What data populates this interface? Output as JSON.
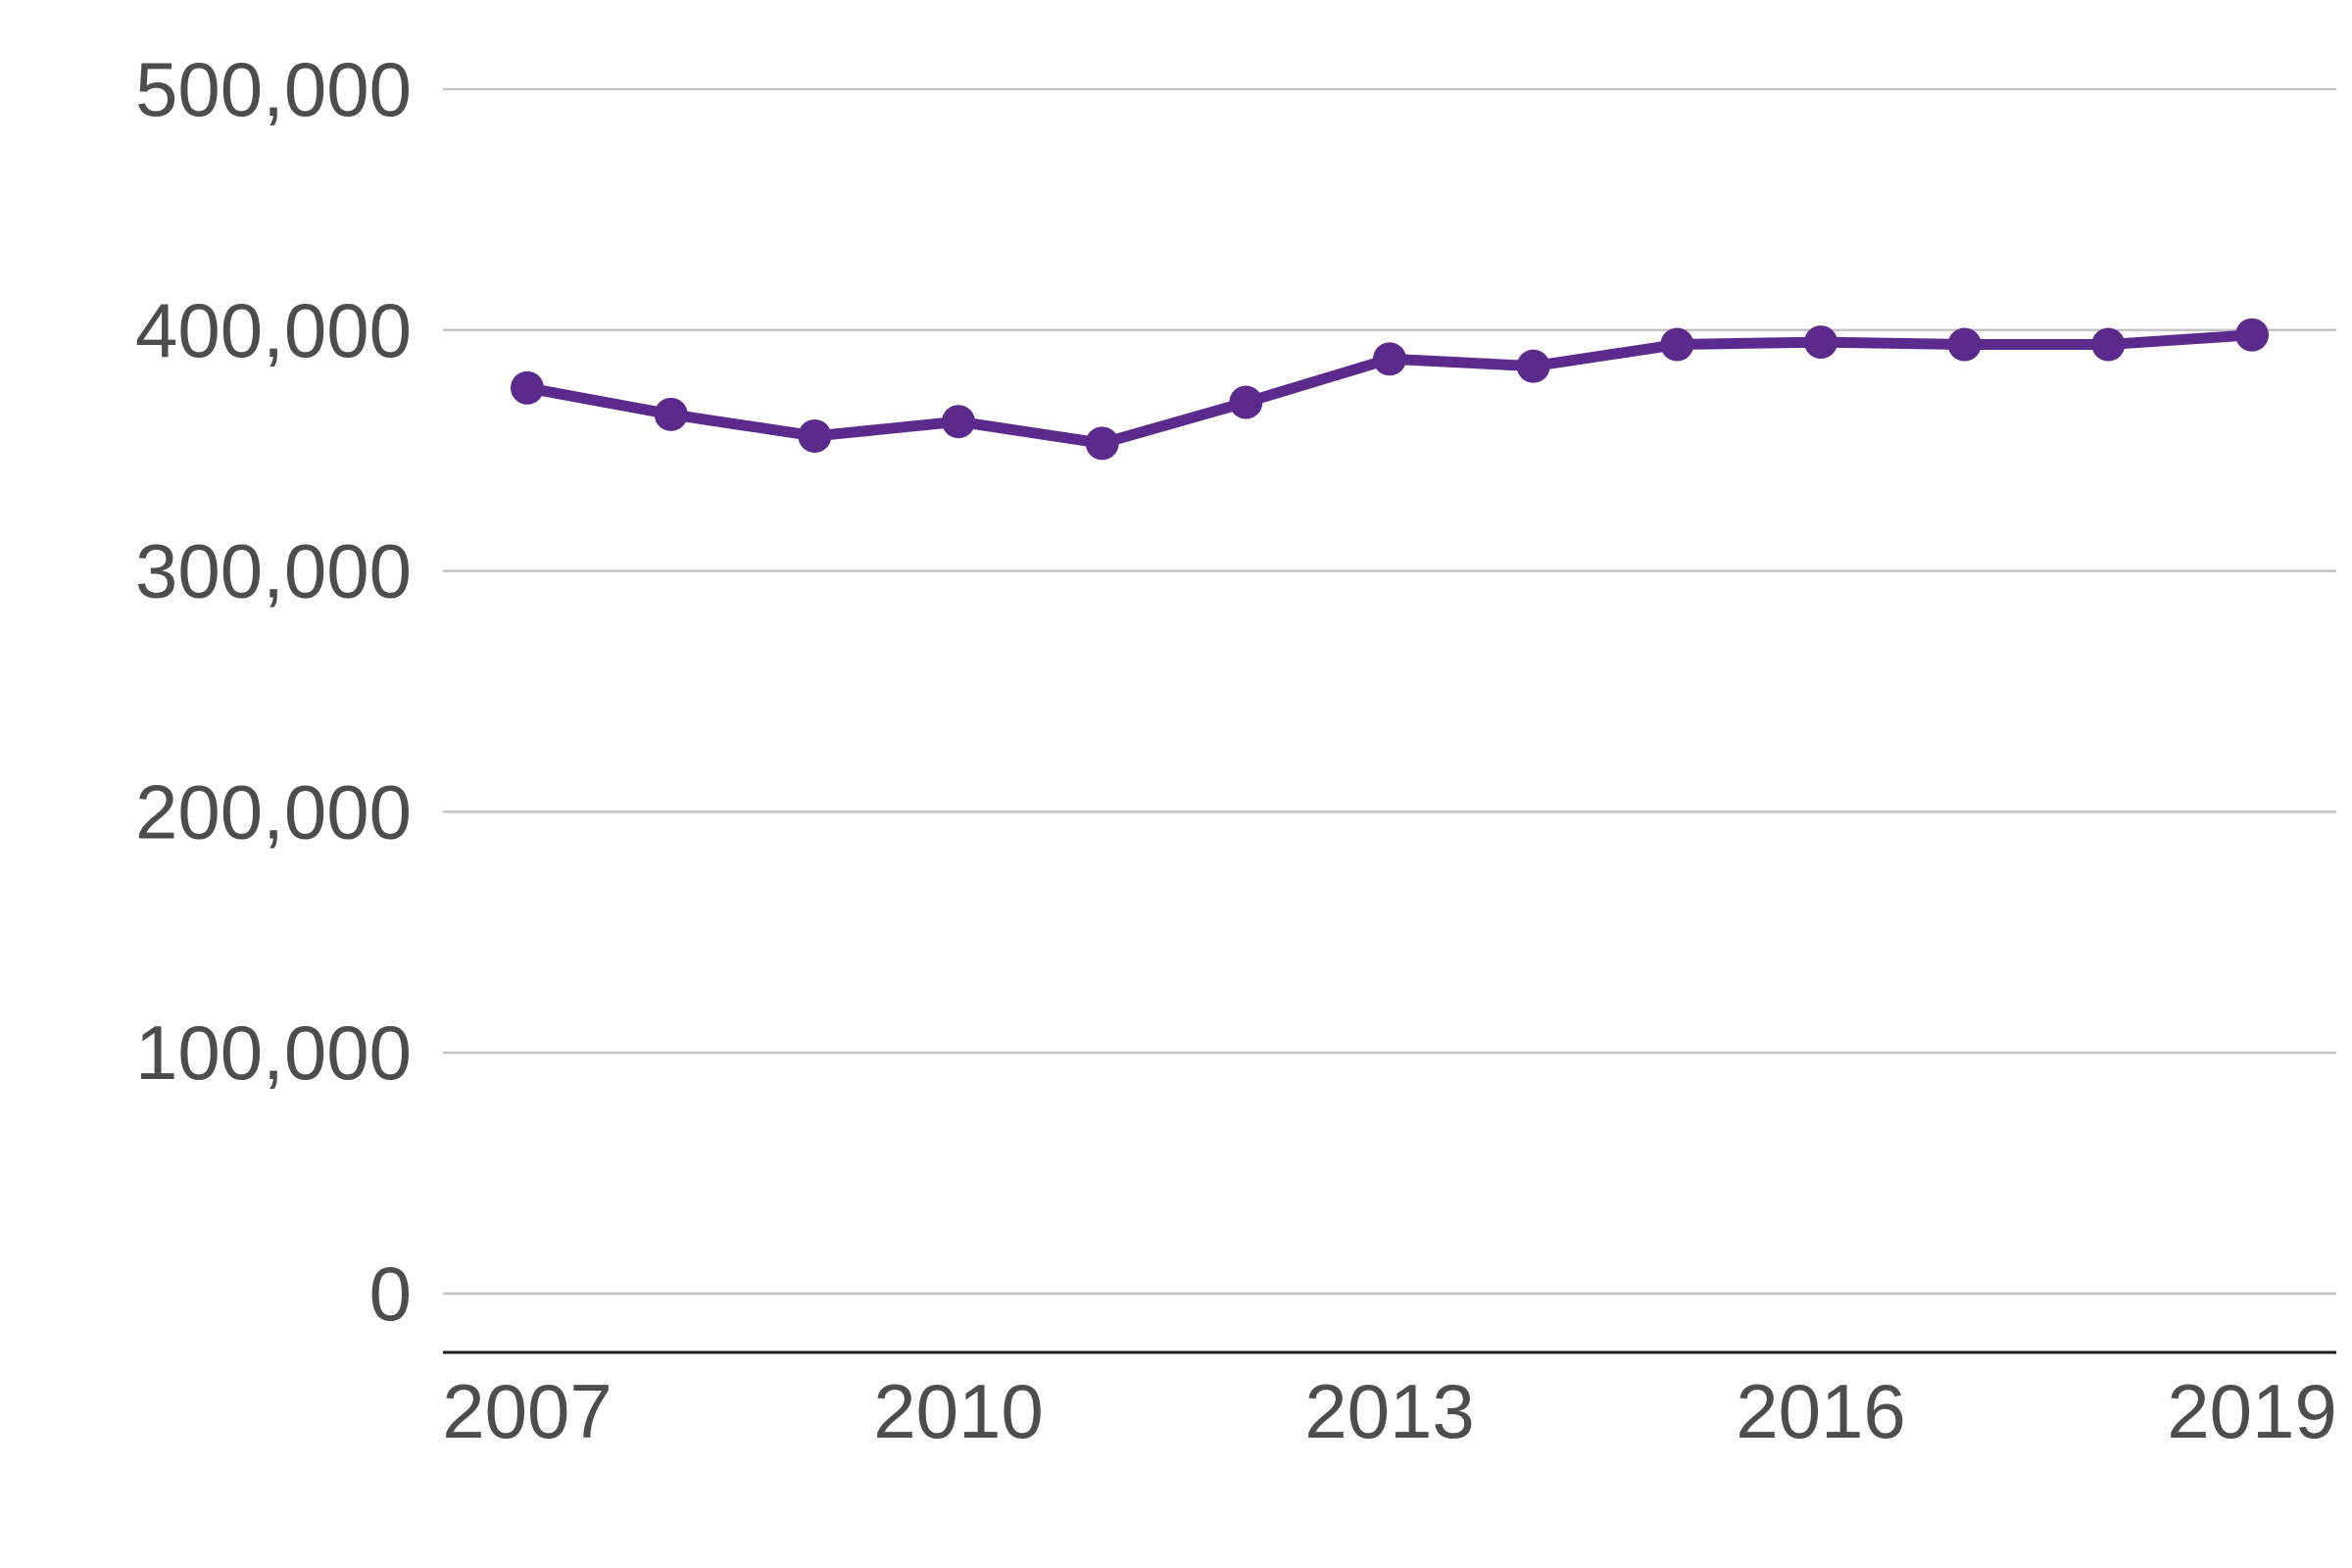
{
  "chart_data": {
    "type": "line",
    "title": "",
    "xlabel": "",
    "ylabel": "",
    "x": [
      2007,
      2008,
      2009,
      2010,
      2011,
      2012,
      2013,
      2014,
      2015,
      2016,
      2017,
      2018,
      2019
    ],
    "series": [
      {
        "values": [
          376000,
          365000,
          356000,
          362000,
          353000,
          370000,
          388000,
          385000,
          394000,
          395000,
          394000,
          394000,
          398000
        ],
        "color": "#5b2a8c"
      }
    ],
    "ylim": [
      0,
      500000
    ],
    "yticks": [
      "0",
      "100,000",
      "200,000",
      "300,000",
      "400,000",
      "500,000"
    ],
    "xticks": [
      "2007",
      "2010",
      "2013",
      "2016",
      "2019"
    ],
    "grid": "horizontal",
    "colors": {
      "line": "#5b2a8c",
      "grid": "#c4c4c4",
      "axis": "#222222",
      "text": "#4d4d4d"
    }
  }
}
